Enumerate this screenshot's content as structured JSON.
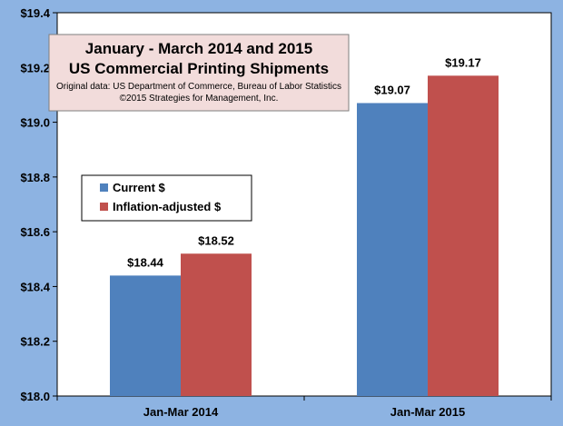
{
  "chart_data": {
    "type": "bar",
    "title": "January - March 2014 and 2015",
    "subtitle": "US Commercial Printing Shipments",
    "notes": [
      "Original data: US Department of Commerce, Bureau of Labor Statistics",
      "©2015 Strategies for Management, Inc."
    ],
    "xlabel": "",
    "ylabel": "",
    "categories": [
      "Jan-Mar 2014",
      "Jan-Mar 2015"
    ],
    "series": [
      {
        "name": "Current $",
        "values": [
          18.44,
          19.07
        ],
        "labels": [
          "$18.44",
          "$19.07"
        ],
        "color": "#4f81bd"
      },
      {
        "name": "Inflation-adjusted $",
        "values": [
          18.52,
          19.17
        ],
        "labels": [
          "$18.52",
          "$19.17"
        ],
        "color": "#c0504d"
      }
    ],
    "ylim": [
      18.0,
      19.4
    ],
    "yticks": [
      18.0,
      18.2,
      18.4,
      18.6,
      18.8,
      19.0,
      19.2,
      19.4
    ],
    "ytick_labels": [
      "$18.0",
      "$18.2",
      "$18.4",
      "$18.6",
      "$18.8",
      "$19.0",
      "$19.2",
      "$19.4"
    ],
    "grid": false,
    "legend_position": "middle-left",
    "colors": {
      "background": "#8db3e2",
      "plot_area": "#ffffff",
      "title_box": "#f2dcdb"
    }
  }
}
